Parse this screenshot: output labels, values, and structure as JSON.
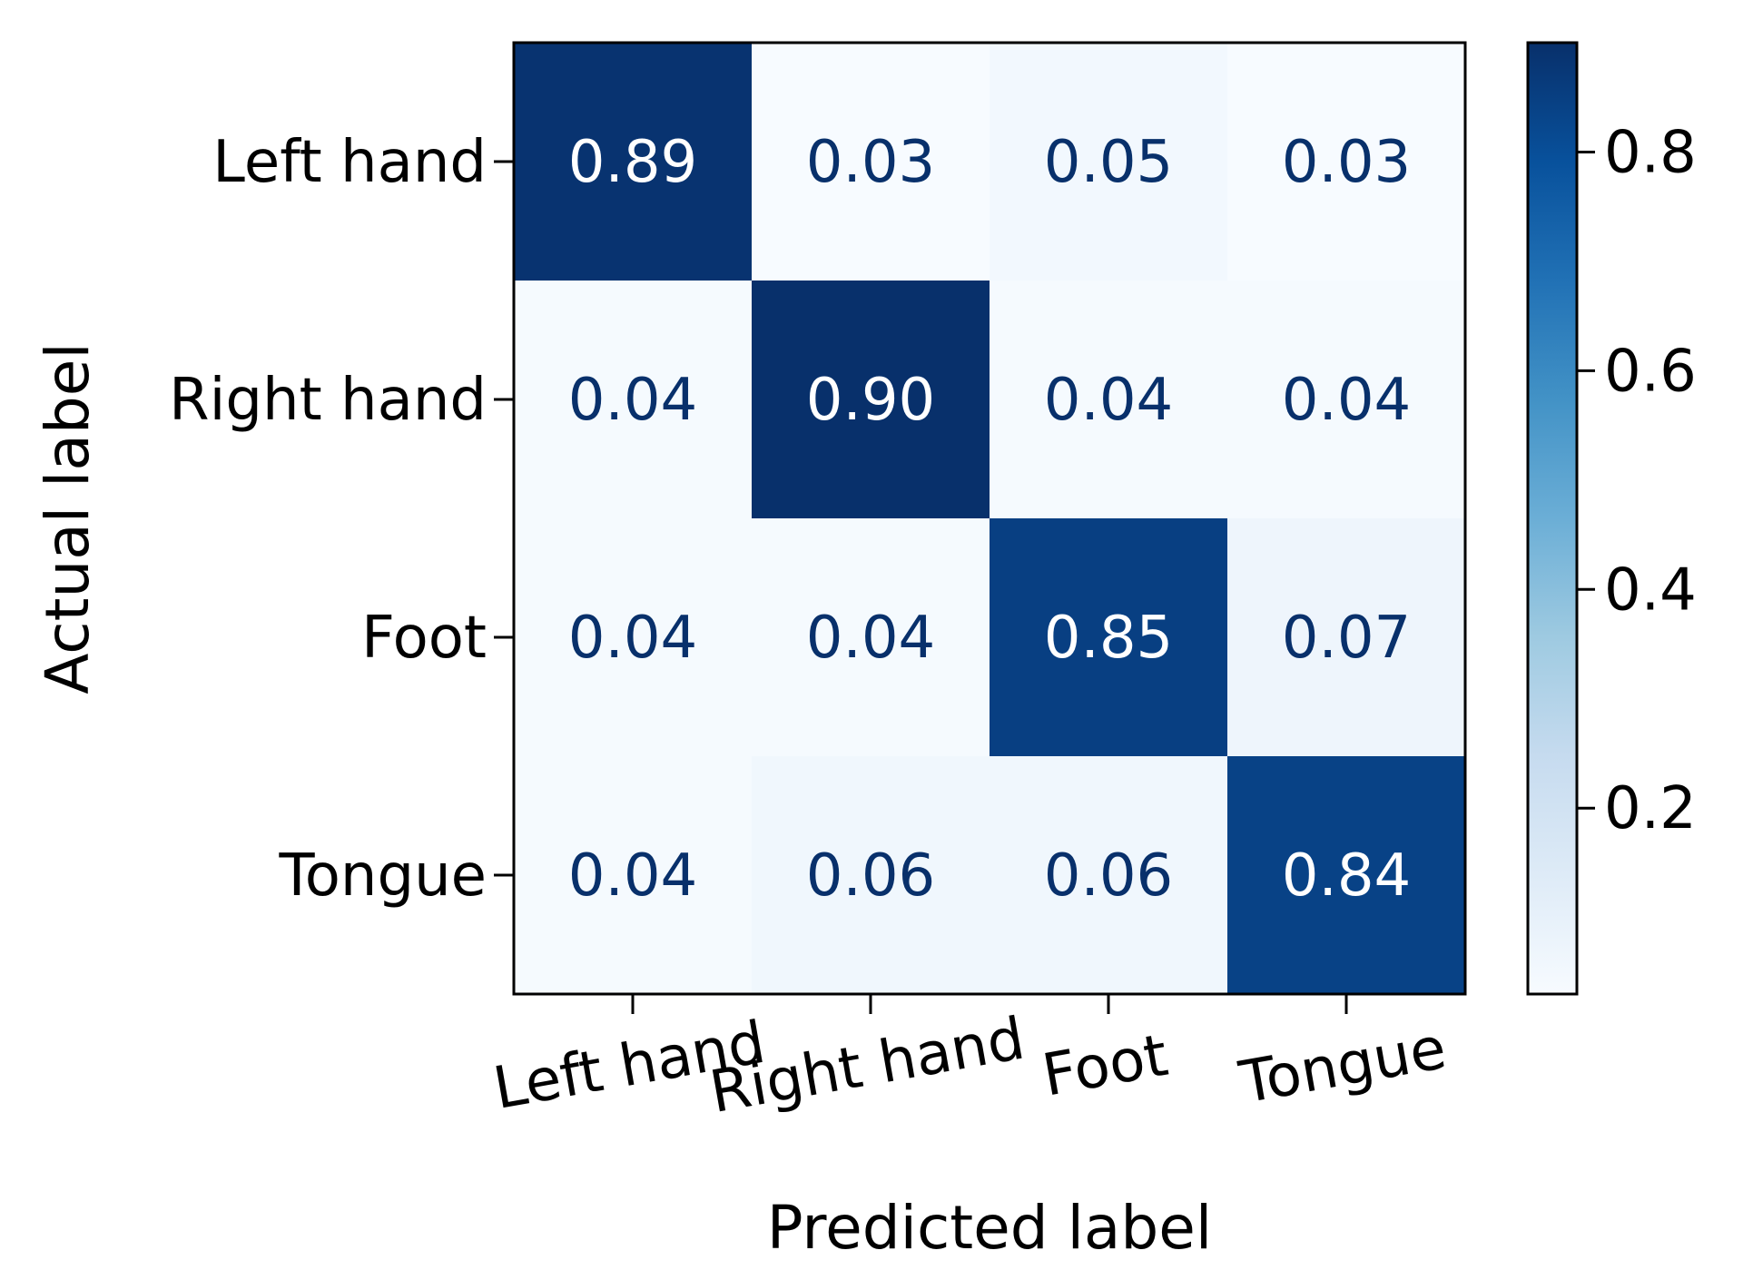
{
  "chart_data": {
    "type": "heatmap",
    "title": "",
    "xlabel": "Predicted label",
    "ylabel": "Actual label",
    "x_categories": [
      "Left hand",
      "Right hand",
      "Foot",
      "Tongue"
    ],
    "y_categories": [
      "Left hand",
      "Right hand",
      "Foot",
      "Tongue"
    ],
    "values": [
      [
        0.89,
        0.03,
        0.05,
        0.03
      ],
      [
        0.04,
        0.9,
        0.04,
        0.04
      ],
      [
        0.04,
        0.04,
        0.85,
        0.07
      ],
      [
        0.04,
        0.06,
        0.06,
        0.84
      ]
    ],
    "value_labels": [
      [
        "0.89",
        "0.03",
        "0.05",
        "0.03"
      ],
      [
        "0.04",
        "0.90",
        "0.04",
        "0.04"
      ],
      [
        "0.04",
        "0.04",
        "0.85",
        "0.07"
      ],
      [
        "0.04",
        "0.06",
        "0.06",
        "0.84"
      ]
    ],
    "colormap": "Blues",
    "colorbar": {
      "range": [
        0.03,
        0.9
      ],
      "ticks": [
        0.2,
        0.4,
        0.6,
        0.8
      ],
      "tick_labels": [
        "0.2",
        "0.4",
        "0.6",
        "0.8"
      ]
    },
    "x_tick_rotation": "rotated",
    "colors": {
      "light_text": "#ffffff",
      "dark_text": "#08306b",
      "frame": "#000000"
    }
  }
}
